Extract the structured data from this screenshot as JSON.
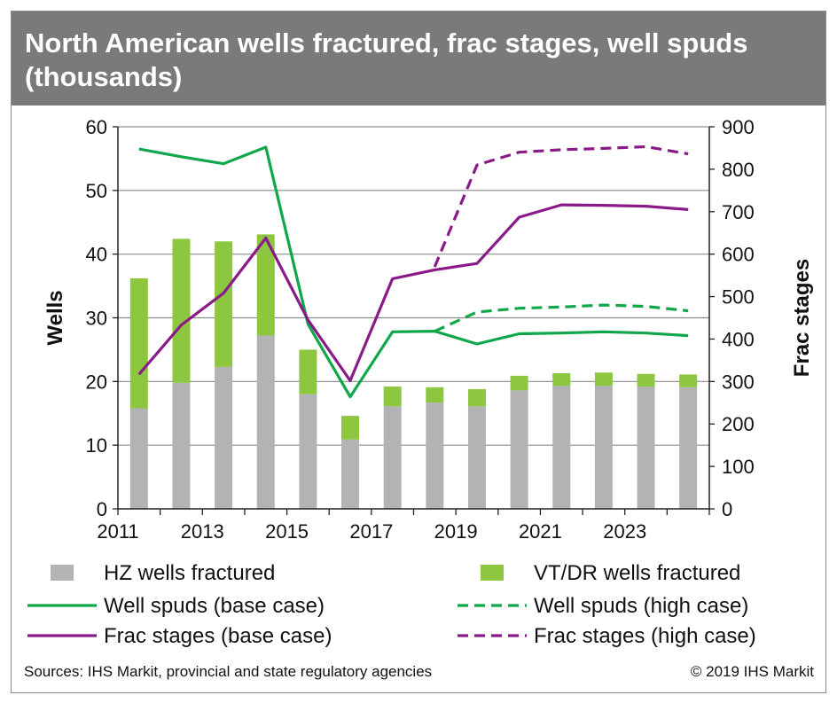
{
  "title": "North American wells fractured, frac stages, well spuds (thousands)",
  "footer": {
    "sources": "Sources: IHS Markit, provincial and state regulatory agencies",
    "copyright": "© 2019 IHS Markit"
  },
  "colors": {
    "hz": "#b3b3b5",
    "vt": "#8dc63f",
    "spuds": "#10a64a",
    "frac": "#8b1a89",
    "grid": "#8c8c8c",
    "title_bg": "#7a7a7a"
  },
  "chart_data": {
    "type": "bar",
    "title": "North American wells fractured, frac stages, well spuds (thousands)",
    "xlabel": "",
    "ylabel": "Wells",
    "y2label": "Frac stages",
    "ylim": [
      0,
      60
    ],
    "y2lim": [
      0,
      900
    ],
    "yticks": [
      "0",
      "10",
      "20",
      "30",
      "40",
      "50",
      "60"
    ],
    "y2ticks": [
      "0",
      "100",
      "200",
      "300",
      "400",
      "500",
      "600",
      "700",
      "800",
      "900"
    ],
    "grid": true,
    "legend_placement": "bottom",
    "categories": [
      "2011",
      "2012",
      "2013",
      "2014",
      "2015",
      "2016",
      "2017",
      "2018",
      "2019",
      "2020",
      "2021",
      "2022",
      "2023",
      "2024"
    ],
    "x_tick_labels": [
      "2011",
      "2013",
      "2015",
      "2017",
      "2019",
      "2021",
      "2023"
    ],
    "series": [
      {
        "name": "HZ wells fractured",
        "kind": "bar-stack",
        "axis": "left",
        "values": [
          15.8,
          19.8,
          22.3,
          27.2,
          18.0,
          10.9,
          16.1,
          16.7,
          16.1,
          18.6,
          19.3,
          19.3,
          19.2,
          19.1
        ]
      },
      {
        "name": "VT/DR wells fractured",
        "kind": "bar-stack",
        "axis": "left",
        "values": [
          20.4,
          22.6,
          19.7,
          15.9,
          7.0,
          3.7,
          3.1,
          2.4,
          2.7,
          2.3,
          2.0,
          2.1,
          2.0,
          2.0
        ]
      },
      {
        "name": "Well spuds (base case)",
        "kind": "line-solid",
        "axis": "left",
        "values": [
          56.5,
          55.3,
          54.2,
          56.8,
          29.0,
          17.6,
          27.8,
          27.9,
          25.9,
          27.5,
          27.6,
          27.8,
          27.6,
          27.2
        ]
      },
      {
        "name": "Well spuds (high case)",
        "kind": "line-dashed",
        "axis": "left",
        "values": [
          null,
          null,
          null,
          null,
          null,
          null,
          null,
          27.9,
          30.9,
          31.5,
          31.7,
          32.0,
          31.8,
          31.1
        ]
      },
      {
        "name": "Frac stages (base case)",
        "kind": "line-solid",
        "axis": "right",
        "values": [
          317,
          433,
          508,
          638,
          445,
          302,
          542,
          563,
          578,
          687,
          716,
          715,
          713,
          705
        ]
      },
      {
        "name": "Frac stages (high case)",
        "kind": "line-dashed",
        "axis": "right",
        "values": [
          null,
          null,
          null,
          null,
          null,
          null,
          null,
          570,
          810,
          840,
          846,
          849,
          853,
          836
        ]
      }
    ]
  }
}
